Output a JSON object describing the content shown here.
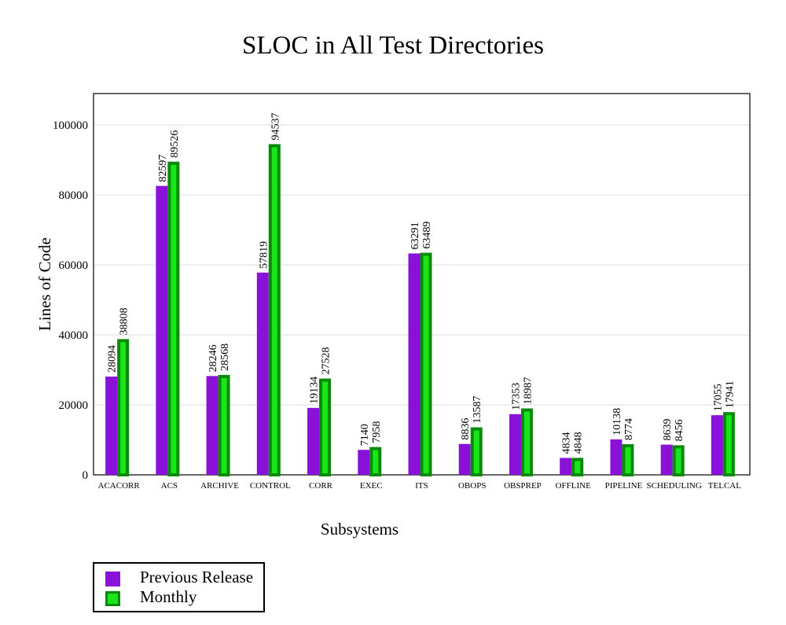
{
  "chart_data": {
    "type": "bar",
    "title": "SLOC in All Test Directories",
    "xlabel": "Subsystems",
    "ylabel": "Lines of Code",
    "ylim": [
      0,
      109000
    ],
    "yticks": [
      0,
      20000,
      40000,
      60000,
      80000,
      100000
    ],
    "grid": true,
    "legend_position": "bottom-left",
    "categories": [
      "ACACORR",
      "ACS",
      "ARCHIVE",
      "CONTROL",
      "CORR",
      "EXEC",
      "ITS",
      "OBOPS",
      "OBSPREP",
      "OFFLINE",
      "PIPELINE",
      "SCHEDULING",
      "TELCAL"
    ],
    "series": [
      {
        "name": "Previous Release",
        "color": "#8a12d8",
        "edge": "#5a0a96",
        "values": [
          28094,
          82597,
          28246,
          57819,
          19134,
          7140,
          63291,
          8836,
          17353,
          4834,
          10138,
          8639,
          17055
        ]
      },
      {
        "name": "Monthly",
        "color": "#19e619",
        "edge": "#0a8a0a",
        "values": [
          38808,
          89526,
          28568,
          94537,
          27528,
          7958,
          63489,
          13587,
          18987,
          4848,
          8774,
          8456,
          17941
        ]
      }
    ]
  }
}
